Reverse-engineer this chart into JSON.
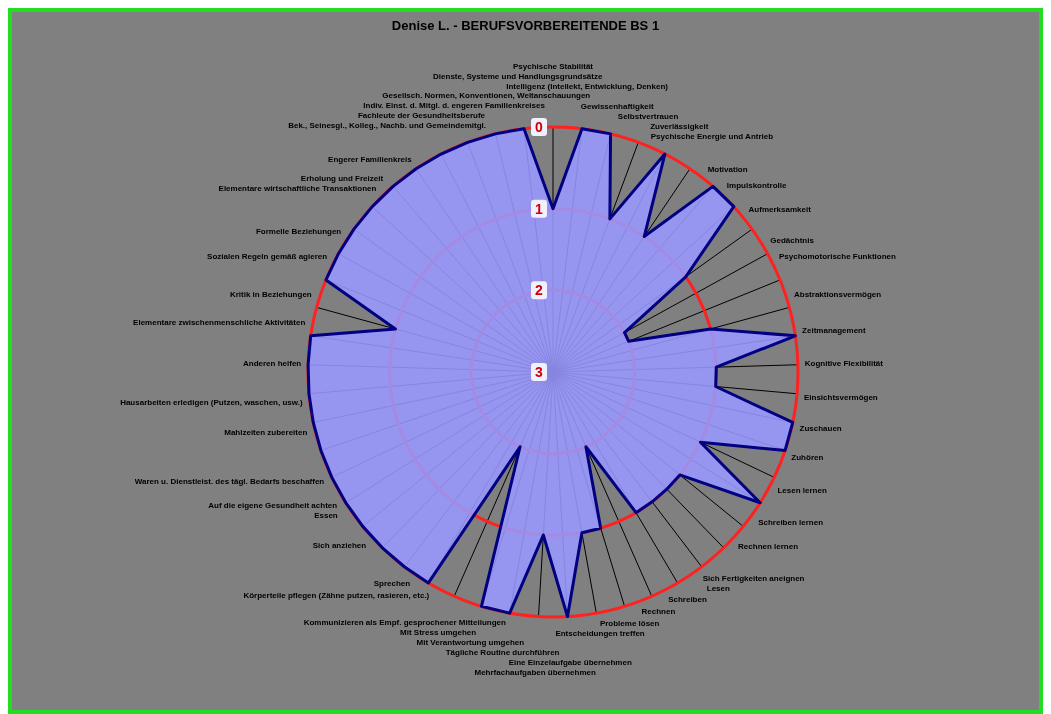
{
  "chart_data": {
    "type": "radar",
    "title": "Denise L. - BERUFSVORBEREITENDE BS 1",
    "categories": [
      "Psychische Stabilität",
      "Intelligenz (Intellekt, Entwicklung, Denken)",
      "Gewissenhaftigkeit",
      "Selbstvertrauen",
      "Zuverlässigkeit",
      "Psychische Energie und Antrieb",
      "Motivation",
      "Impulskontrolle",
      "Aufmerksamkeit",
      "Gedächtnis",
      "Psychomotorische Funktionen",
      "Abstraktionsvermögen",
      "Zeitmanagement",
      "Kognitive Flexibilität",
      "Einsichtsvermögen",
      "Zuschauen",
      "Zuhören",
      "Lesen lernen",
      "Schreiben lernen",
      "Rechnen lernen",
      "Sich Fertigkeiten aneignen",
      "Lesen",
      "Schreiben",
      "Rechnen",
      "Probleme lösen",
      "Entscheidungen treffen",
      "Eine Einzelaufgabe übernehmen",
      "Mehrfachaufgaben übernehmen",
      "Tägliche Routine durchführen",
      "Mit Verantwortung umgehen",
      "Mit Stress umgehen",
      "Kommunizieren als Empf. gesprochener Mitteilungen",
      "Sprechen",
      "Körperteile pflegen (Zähne putzen, rasieren, etc.)",
      "Sich anziehen",
      "Essen",
      "Auf die eigene Gesundheit achten",
      "Waren u. Dienstleist. des tägl. Bedarfs beschaffen",
      "Mahlzeiten zubereiten",
      "Hausarbeiten erledigen (Putzen, waschen, usw.)",
      "Anderen helfen",
      "Elementare zwischenmenschliche Aktivitäten",
      "Kritik in Beziehungen",
      "Sozialen Regeln gemäß agieren",
      "Formelle Beziehungen",
      "Elementare wirtschaftliche Transaktionen",
      "Erholung und Freizeit",
      "Engerer Familienkreis",
      "Bek., Seinesgl., Kolleg., Nachb. und Gemeindemitgl.",
      "Fachleute der Gesundheitsberufe",
      "Indiv. Einst. d. Mitgl. d. engeren Familienkreises",
      "Gesellsch. Normen, Konventionen, Weltanschauungen",
      "Dienste, Systeme und Handlungsgrundsätze"
    ],
    "series": [
      {
        "color": "#000080",
        "values": [
          1,
          0,
          0,
          1,
          0,
          1,
          0,
          0,
          1,
          2,
          2,
          1,
          0,
          1,
          1,
          0,
          0,
          1,
          0,
          1,
          1,
          1,
          1,
          2,
          1,
          1,
          0,
          1,
          0,
          0,
          2,
          0,
          0,
          0,
          0,
          0,
          0,
          0,
          0,
          0,
          0,
          0,
          1,
          0,
          0,
          0,
          0,
          0,
          0,
          0,
          0,
          0,
          0
        ]
      }
    ],
    "ylim": [
      3,
      0
    ],
    "yticks": [
      0,
      1,
      2,
      3
    ],
    "grid": true
  }
}
